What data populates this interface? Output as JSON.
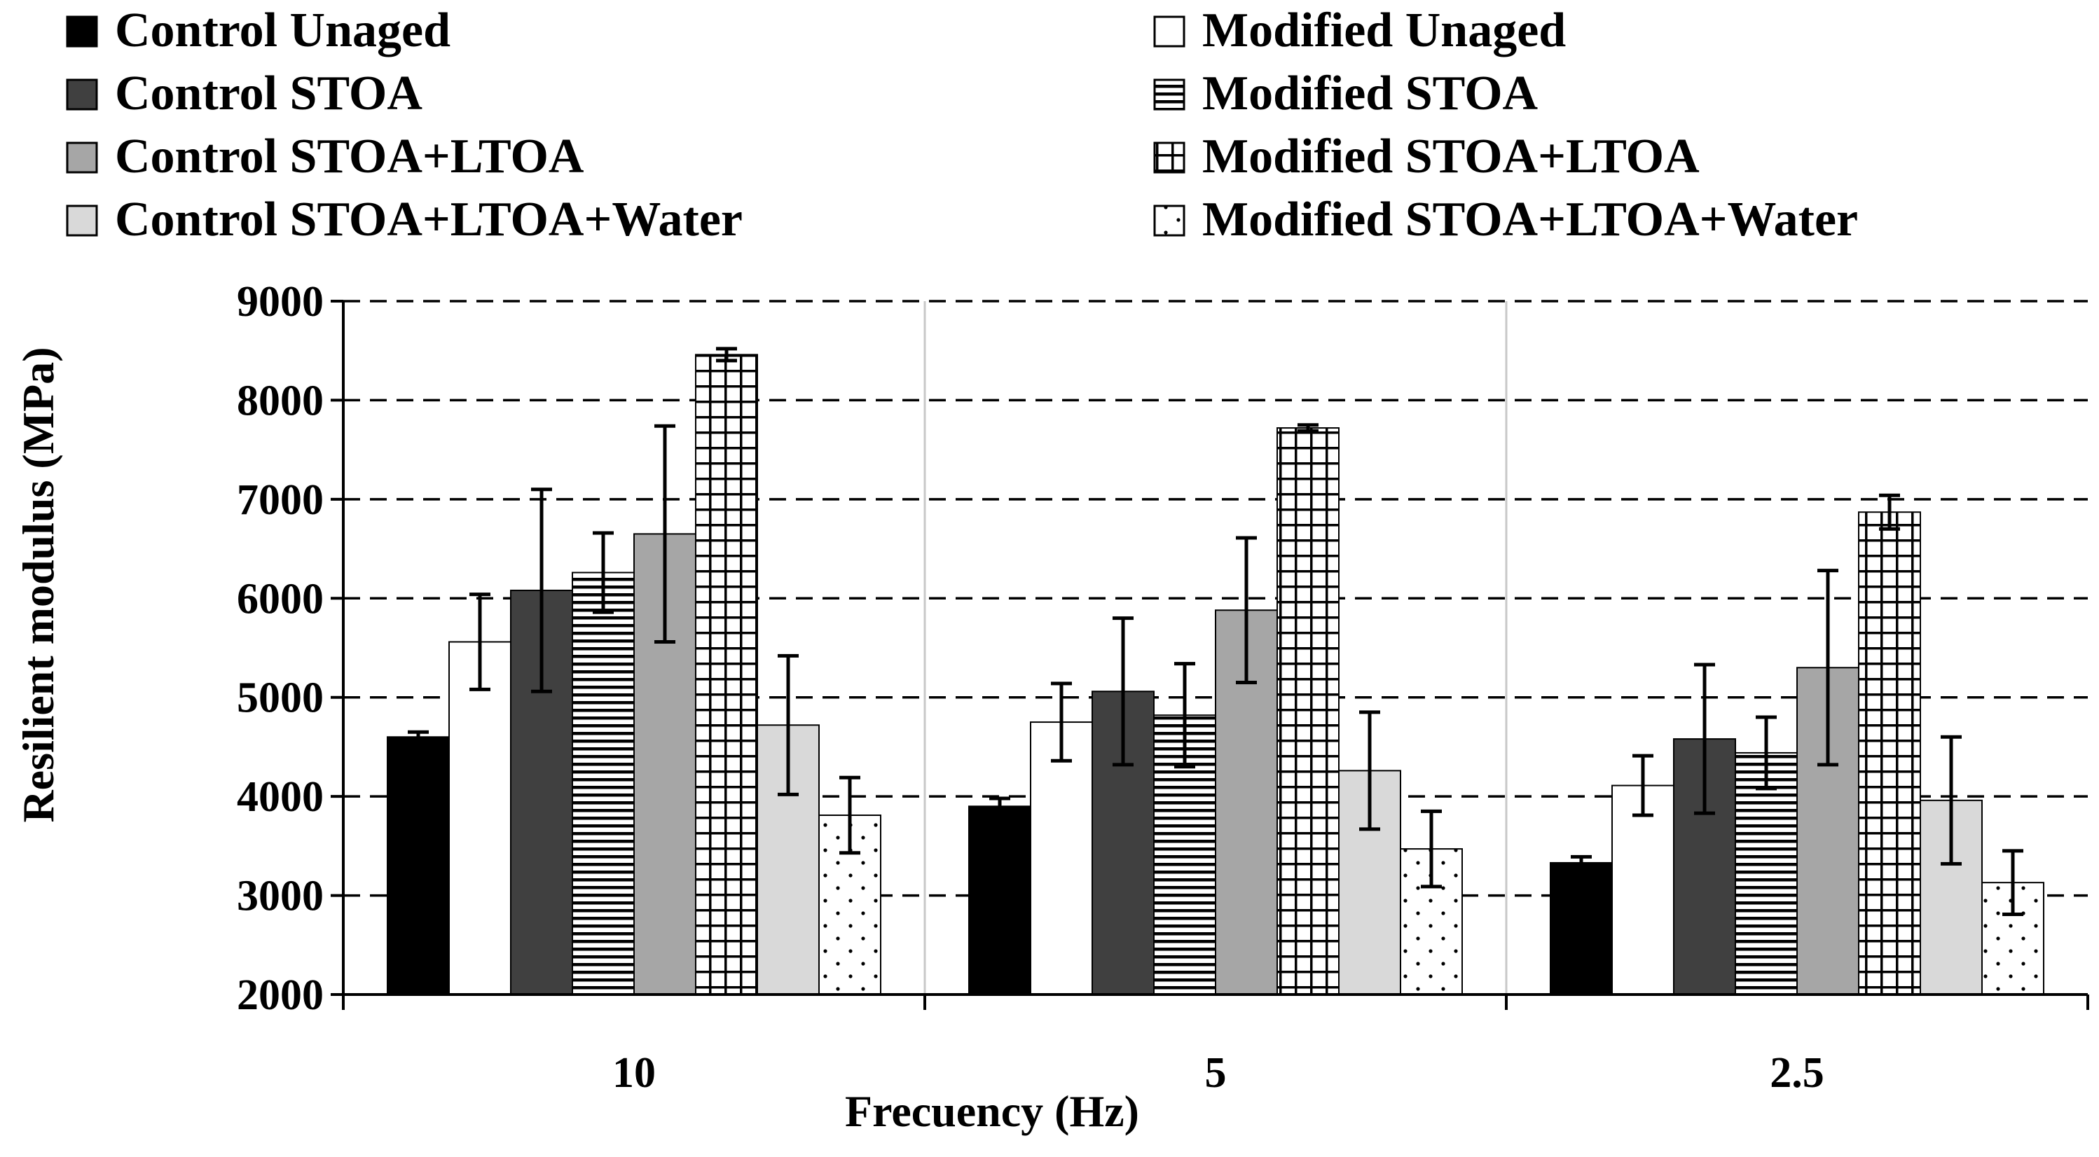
{
  "chart_data": {
    "type": "bar",
    "title": "",
    "xlabel": "Frecuency (Hz)",
    "ylabel": "Resilient modulus (MPa)",
    "ylim": [
      2000,
      9000
    ],
    "yticks": [
      2000,
      3000,
      4000,
      5000,
      6000,
      7000,
      8000,
      9000
    ],
    "ytick_labels": [
      "2000",
      "3000",
      "4000",
      "5000",
      "6000",
      "7000",
      "8000",
      "9000"
    ],
    "grid": "horizontal dashed",
    "legend_position": "top",
    "categories": [
      "10",
      "5",
      "2.5"
    ],
    "series": [
      {
        "name": "Control Unaged",
        "fill": "#000000",
        "pattern": "solid",
        "values": [
          4600,
          3900,
          3330
        ],
        "errors": [
          50,
          80,
          60
        ]
      },
      {
        "name": "Modified Unaged",
        "fill": "#ffffff",
        "pattern": "solid",
        "values": [
          5560,
          4750,
          4110
        ],
        "errors": [
          480,
          390,
          300
        ]
      },
      {
        "name": "Control STOA",
        "fill": "#404040",
        "pattern": "solid",
        "values": [
          6080,
          5060,
          4580
        ],
        "errors": [
          1020,
          740,
          750
        ]
      },
      {
        "name": "Modified STOA",
        "fill": "#ffffff",
        "pattern": "horizontal-lines",
        "values": [
          6260,
          4820,
          4440
        ],
        "errors": [
          400,
          520,
          360
        ]
      },
      {
        "name": "Control STOA+LTOA",
        "fill": "#a6a6a6",
        "pattern": "solid",
        "values": [
          6650,
          5880,
          5300
        ],
        "errors": [
          1090,
          730,
          980
        ]
      },
      {
        "name": "Modified STOA+LTOA",
        "fill": "#ffffff",
        "pattern": "grid",
        "values": [
          8460,
          7720,
          6870
        ],
        "errors": [
          60,
          30,
          170
        ]
      },
      {
        "name": "Control STOA+LTOA+Water",
        "fill": "#d9d9d9",
        "pattern": "solid",
        "values": [
          4720,
          4260,
          3960
        ],
        "errors": [
          700,
          590,
          640
        ]
      },
      {
        "name": "Modified STOA+LTOA+Water",
        "fill": "#ffffff",
        "pattern": "dots",
        "values": [
          3810,
          3470,
          3130
        ],
        "errors": [
          380,
          380,
          320
        ]
      }
    ]
  }
}
